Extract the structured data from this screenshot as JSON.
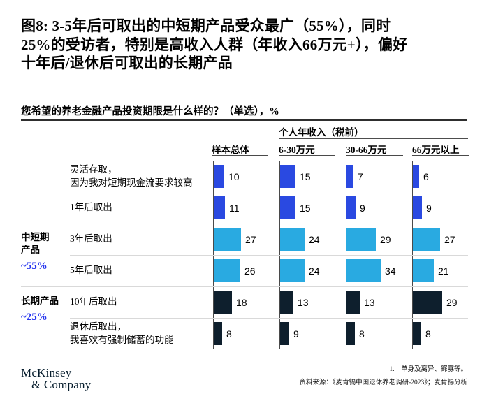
{
  "title_lines": [
    "图8: 3-5年后可取出的中短期产品受众最广（55%），同时",
    "25%的受访者，特别是高收入人群（年收入66万元+），偏好",
    "十年后/退休后可取出的长期产品"
  ],
  "question": "您希望的养老金融产品投资期限是什么样的？（单选），%",
  "chart_data": {
    "type": "bar",
    "orientation": "horizontal",
    "unit": "%",
    "title": "您希望的养老金融产品投资期限是什么样的？（单选），%",
    "group_header": "个人年收入（税前）",
    "columns": [
      "样本总体",
      "6-30万元",
      "30-66万元",
      "66万元以上"
    ],
    "categories": [
      [
        "灵活存取，",
        "因为我对短期现金流要求较高"
      ],
      [
        "1年后取出"
      ],
      [
        "3年后取出"
      ],
      [
        "5年后取出"
      ],
      [
        "10年后取出"
      ],
      [
        "退休后取出，",
        "我喜欢有强制储蓄的功能"
      ]
    ],
    "series": [
      {
        "name": "样本总体",
        "values": [
          10,
          11,
          27,
          26,
          18,
          8
        ]
      },
      {
        "name": "6-30万元",
        "values": [
          15,
          15,
          24,
          24,
          13,
          9
        ]
      },
      {
        "name": "30-66万元",
        "values": [
          7,
          9,
          29,
          34,
          13,
          8
        ]
      },
      {
        "name": "66万元以上",
        "values": [
          6,
          9,
          27,
          21,
          29,
          8
        ]
      }
    ],
    "row_colors": [
      "blue",
      "blue",
      "cyan",
      "cyan",
      "navy",
      "navy"
    ],
    "palette": {
      "blue": "#2a49e1",
      "cyan": "#29aae1",
      "navy": "#0e1f2d"
    },
    "accent_color": "#2433ee",
    "row_groups": [
      {
        "label_line1": "中短期",
        "label_line2": "产品",
        "share": "~55%",
        "row_span": [
          2,
          3
        ]
      },
      {
        "label_line1": "长期产品",
        "label_line2": "",
        "share": "~25%",
        "row_span": [
          4,
          5
        ]
      }
    ],
    "xlim": [
      0,
      40
    ],
    "grid": "light row separators",
    "legend": "none"
  },
  "footer": {
    "logo_line1": "McKinsey",
    "logo_line2": "& Company",
    "footnote": "1.　单身及离异、鳏寡等。",
    "source": "资料来源：《麦肯锡中国退休养老调研-2023》；麦肯锡分析"
  }
}
